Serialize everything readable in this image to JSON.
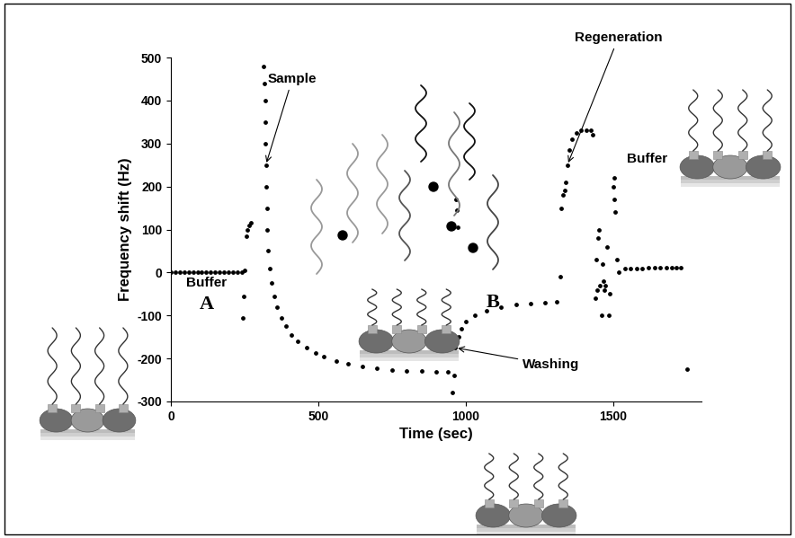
{
  "chart_data": {
    "type": "scatter",
    "xlabel": "Time (sec)",
    "ylabel": "Frequency shift (Hz)",
    "color": "#000000",
    "marker": "o",
    "grid": false,
    "xlim": [
      0,
      1800
    ],
    "ylim": [
      -300,
      500
    ],
    "xticks": [
      0,
      500,
      1000,
      1500
    ],
    "yticks": [
      -300,
      -200,
      -100,
      0,
      100,
      200,
      300,
      400,
      500
    ],
    "x": [
      0,
      15,
      30,
      45,
      60,
      75,
      90,
      105,
      120,
      135,
      150,
      165,
      180,
      195,
      210,
      225,
      240,
      245,
      247,
      250,
      255,
      260,
      265,
      270,
      315,
      317,
      319,
      320,
      321,
      322,
      323,
      325,
      327,
      330,
      335,
      342,
      350,
      360,
      375,
      390,
      410,
      430,
      460,
      490,
      520,
      560,
      600,
      650,
      700,
      750,
      800,
      850,
      900,
      940,
      955,
      960,
      962,
      965,
      968,
      970,
      972,
      975,
      985,
      1000,
      1030,
      1070,
      1120,
      1170,
      1220,
      1270,
      1310,
      1320,
      1325,
      1330,
      1335,
      1340,
      1345,
      1350,
      1360,
      1375,
      1390,
      1410,
      1425,
      1430,
      1440,
      1443,
      1446,
      1450,
      1453,
      1456,
      1460,
      1463,
      1466,
      1470,
      1475,
      1480,
      1485,
      1490,
      1500,
      1503,
      1505,
      1508,
      1512,
      1520,
      1540,
      1560,
      1580,
      1600,
      1620,
      1640,
      1660,
      1680,
      1700,
      1715,
      1730,
      1750
    ],
    "values": [
      0,
      0,
      0,
      0,
      0,
      0,
      0,
      0,
      0,
      0,
      0,
      0,
      0,
      0,
      0,
      0,
      0,
      -105,
      -55,
      5,
      85,
      100,
      110,
      115,
      480,
      440,
      400,
      350,
      300,
      250,
      200,
      150,
      100,
      50,
      10,
      -25,
      -55,
      -80,
      -105,
      -125,
      -145,
      -160,
      -175,
      -187,
      -196,
      -205,
      -212,
      -218,
      -222,
      -226,
      -228,
      -230,
      -231,
      -232,
      -280,
      -240,
      -200,
      -175,
      170,
      145,
      105,
      -150,
      -130,
      -115,
      -100,
      -88,
      -80,
      -75,
      -72,
      -70,
      -68,
      -10,
      150,
      180,
      190,
      210,
      250,
      285,
      310,
      325,
      330,
      330,
      330,
      320,
      -60,
      30,
      -40,
      80,
      100,
      -30,
      -100,
      20,
      -20,
      -40,
      -30,
      60,
      -100,
      -50,
      200,
      220,
      170,
      140,
      30,
      0,
      10,
      10,
      10,
      10,
      12,
      12,
      12,
      12,
      12,
      12,
      12,
      -225
    ],
    "annotations": [
      {
        "text": "Buffer",
        "x": 122,
        "y": -25
      },
      {
        "text": "A",
        "x": 122,
        "y": -75
      },
      {
        "text": "Sample",
        "x": 412,
        "y": 450,
        "point": [
          322,
          250
        ]
      },
      {
        "text": "B",
        "x": 1091,
        "y": -70
      },
      {
        "text": "Washing",
        "x": 1290,
        "y": -215,
        "point": [
          965,
          -175
        ]
      },
      {
        "text": "Regeneration",
        "x": 1518,
        "y": 546,
        "point": [
          1345,
          250
        ]
      },
      {
        "text": "Buffer",
        "x": 1616,
        "y": 265
      }
    ]
  }
}
